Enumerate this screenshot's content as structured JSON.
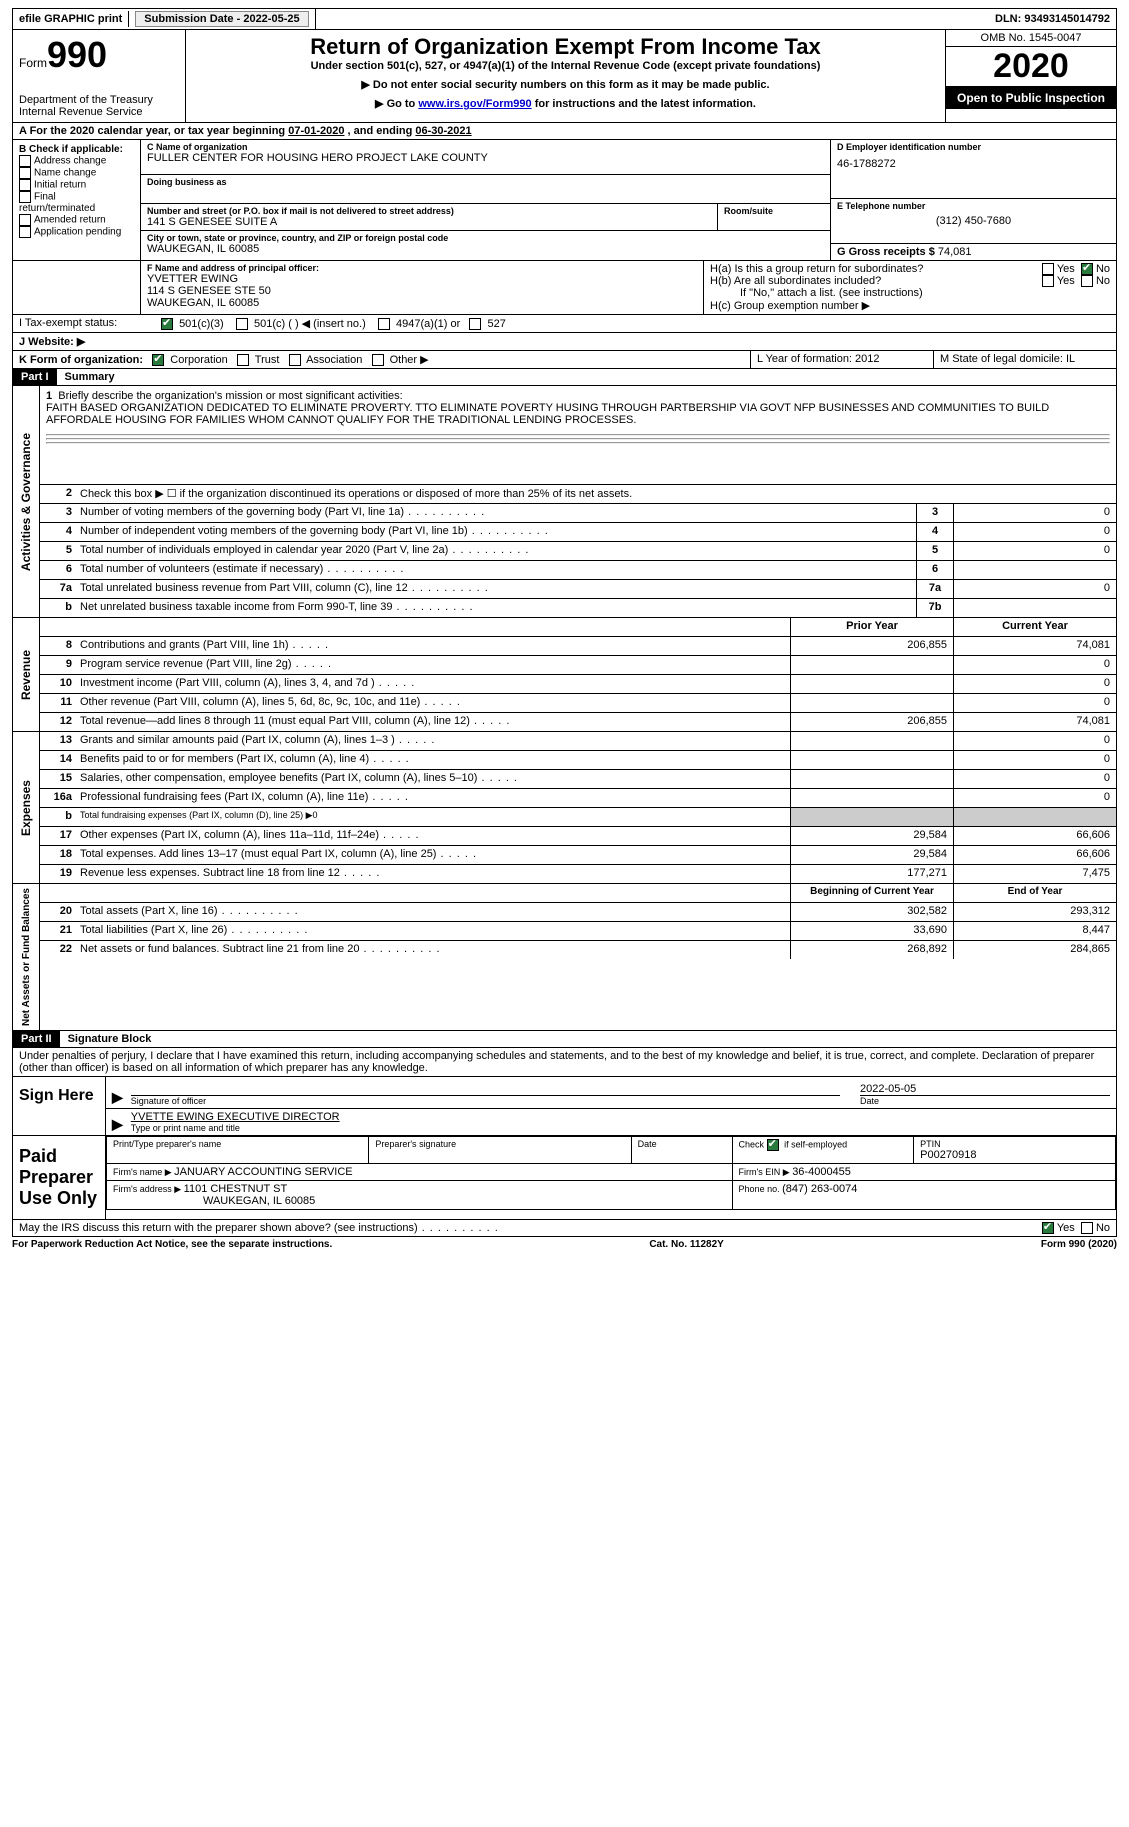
{
  "topbar": {
    "efile": "efile GRAPHIC print",
    "submission_label": "Submission Date - ",
    "submission_date": "2022-05-25",
    "dln_label": "DLN: ",
    "dln": "93493145014792"
  },
  "header": {
    "form_word": "Form",
    "form_no": "990",
    "dept1": "Department of the Treasury",
    "dept2": "Internal Revenue Service",
    "title": "Return of Organization Exempt From Income Tax",
    "sub1": "Under section 501(c), 527, or 4947(a)(1) of the Internal Revenue Code (except private foundations)",
    "sub2": "▶ Do not enter social security numbers on this form as it may be made public.",
    "sub3_pre": "▶ Go to ",
    "sub3_link": "www.irs.gov/Form990",
    "sub3_post": " for instructions and the latest information.",
    "omb": "OMB No. 1545-0047",
    "year": "2020",
    "inspection": "Open to Public Inspection"
  },
  "rowA": {
    "text_pre": "A For the 2020 calendar year, or tax year beginning ",
    "begin": "07-01-2020",
    "mid": "  , and ending ",
    "end": "06-30-2021"
  },
  "colB": {
    "header": "B Check if applicable:",
    "items": [
      "Address change",
      "Name change",
      "Initial return",
      "Final return/terminated",
      "Amended return",
      "Application pending"
    ]
  },
  "colC": {
    "name_label": "C Name of organization",
    "name": "FULLER CENTER FOR HOUSING HERO PROJECT LAKE COUNTY",
    "dba_label": "Doing business as",
    "addr_label": "Number and street (or P.O. box if mail is not delivered to street address)",
    "room_label": "Room/suite",
    "addr": "141 S GENESEE SUITE A",
    "city_label": "City or town, state or province, country, and ZIP or foreign postal code",
    "city": "WAUKEGAN, IL  60085"
  },
  "colD": {
    "ein_label": "D Employer identification number",
    "ein": "46-1788272",
    "phone_label": "E Telephone number",
    "phone": "(312) 450-7680",
    "gross_label": "G Gross receipts $ ",
    "gross": "74,081"
  },
  "rowF": {
    "label": "F  Name and address of principal officer:",
    "name": "YVETTER EWING",
    "addr1": "114 S GENESEE STE 50",
    "addr2": "WAUKEGAN, IL  60085"
  },
  "rowH": {
    "ha": "H(a)  Is this a group return for subordinates?",
    "hb": "H(b)  Are all subordinates included?",
    "hb_note": "If \"No,\" attach a list. (see instructions)",
    "hc": "H(c)  Group exemption number ▶",
    "yes": "Yes",
    "no": "No"
  },
  "rowI": {
    "label": "I   Tax-exempt status:",
    "opts": [
      "501(c)(3)",
      "501(c) (  ) ◀ (insert no.)",
      "4947(a)(1) or",
      "527"
    ]
  },
  "rowJ": {
    "label": "J   Website: ▶"
  },
  "rowK": {
    "label": "K Form of organization:",
    "opts": [
      "Corporation",
      "Trust",
      "Association",
      "Other ▶"
    ]
  },
  "rowLM": {
    "l": "L Year of formation: 2012",
    "m": "M State of legal domicile: IL"
  },
  "part1": {
    "tag": "Part I",
    "title": "Summary"
  },
  "gov": {
    "label": "Activities & Governance",
    "l1_label": "Briefly describe the organization's mission or most significant activities:",
    "l1_text": "FAITH BASED ORGANIZATION DEDICATED TO ELIMINATE PROVERTY. TTO ELIMINATE POVERTY HUSING THROUGH PARTBERSHIP VIA GOVT NFP BUSINESSES AND COMMUNITIES TO BUILD AFFORDALE HOUSING FOR FAMILIES WHOM CANNOT QUALIFY FOR THE TRADITIONAL LENDING PROCESSES.",
    "l2": "Check this box ▶ ☐  if the organization discontinued its operations or disposed of more than 25% of its net assets.",
    "lines": [
      {
        "n": "3",
        "d": "Number of voting members of the governing body (Part VI, line 1a)",
        "b": "3",
        "v": "0"
      },
      {
        "n": "4",
        "d": "Number of independent voting members of the governing body (Part VI, line 1b)",
        "b": "4",
        "v": "0"
      },
      {
        "n": "5",
        "d": "Total number of individuals employed in calendar year 2020 (Part V, line 2a)",
        "b": "5",
        "v": "0"
      },
      {
        "n": "6",
        "d": "Total number of volunteers (estimate if necessary)",
        "b": "6",
        "v": ""
      },
      {
        "n": "7a",
        "d": "Total unrelated business revenue from Part VIII, column (C), line 12",
        "b": "7a",
        "v": "0"
      },
      {
        "n": "b",
        "d": "Net unrelated business taxable income from Form 990-T, line 39",
        "b": "7b",
        "v": ""
      }
    ]
  },
  "rev": {
    "label": "Revenue",
    "h_prior": "Prior Year",
    "h_curr": "Current Year",
    "lines": [
      {
        "n": "8",
        "d": "Contributions and grants (Part VIII, line 1h)",
        "p": "206,855",
        "c": "74,081"
      },
      {
        "n": "9",
        "d": "Program service revenue (Part VIII, line 2g)",
        "p": "",
        "c": "0"
      },
      {
        "n": "10",
        "d": "Investment income (Part VIII, column (A), lines 3, 4, and 7d )",
        "p": "",
        "c": "0"
      },
      {
        "n": "11",
        "d": "Other revenue (Part VIII, column (A), lines 5, 6d, 8c, 9c, 10c, and 11e)",
        "p": "",
        "c": "0"
      },
      {
        "n": "12",
        "d": "Total revenue—add lines 8 through 11 (must equal Part VIII, column (A), line 12)",
        "p": "206,855",
        "c": "74,081"
      }
    ]
  },
  "exp": {
    "label": "Expenses",
    "lines": [
      {
        "n": "13",
        "d": "Grants and similar amounts paid (Part IX, column (A), lines 1–3 )",
        "p": "",
        "c": "0"
      },
      {
        "n": "14",
        "d": "Benefits paid to or for members (Part IX, column (A), line 4)",
        "p": "",
        "c": "0"
      },
      {
        "n": "15",
        "d": "Salaries, other compensation, employee benefits (Part IX, column (A), lines 5–10)",
        "p": "",
        "c": "0"
      },
      {
        "n": "16a",
        "d": "Professional fundraising fees (Part IX, column (A), line 11e)",
        "p": "",
        "c": "0"
      },
      {
        "n": "b",
        "d": "Total fundraising expenses (Part IX, column (D), line 25) ▶0",
        "grey": true
      },
      {
        "n": "17",
        "d": "Other expenses (Part IX, column (A), lines 11a–11d, 11f–24e)",
        "p": "29,584",
        "c": "66,606"
      },
      {
        "n": "18",
        "d": "Total expenses. Add lines 13–17 (must equal Part IX, column (A), line 25)",
        "p": "29,584",
        "c": "66,606"
      },
      {
        "n": "19",
        "d": "Revenue less expenses. Subtract line 18 from line 12",
        "p": "177,271",
        "c": "7,475"
      }
    ]
  },
  "net": {
    "label": "Net Assets or Fund Balances",
    "h_prior": "Beginning of Current Year",
    "h_curr": "End of Year",
    "lines": [
      {
        "n": "20",
        "d": "Total assets (Part X, line 16)",
        "p": "302,582",
        "c": "293,312"
      },
      {
        "n": "21",
        "d": "Total liabilities (Part X, line 26)",
        "p": "33,690",
        "c": "8,447"
      },
      {
        "n": "22",
        "d": "Net assets or fund balances. Subtract line 21 from line 20",
        "p": "268,892",
        "c": "284,865"
      }
    ]
  },
  "part2": {
    "tag": "Part II",
    "title": "Signature Block",
    "perjury": "Under penalties of perjury, I declare that I have examined this return, including accompanying schedules and statements, and to the best of my knowledge and belief, it is true, correct, and complete. Declaration of preparer (other than officer) is based on all information of which preparer has any knowledge."
  },
  "sign": {
    "here": "Sign Here",
    "sig_officer": "Signature of officer",
    "date": "Date",
    "date_val": "2022-05-05",
    "name": "YVETTE EWING  EXECUTIVE DIRECTOR",
    "name_label": "Type or print name and title"
  },
  "paid": {
    "title": "Paid Preparer Use Only",
    "h1": "Print/Type preparer's name",
    "h2": "Preparer's signature",
    "h3": "Date",
    "h4_pre": "Check ",
    "h4_post": " if self-employed",
    "h5": "PTIN",
    "ptin": "P00270918",
    "firm_name_label": "Firm's name    ▶ ",
    "firm_name": "JANUARY ACCOUNTING SERVICE",
    "firm_ein_label": "Firm's EIN ▶ ",
    "firm_ein": "36-4000455",
    "firm_addr_label": "Firm's address ▶ ",
    "firm_addr": "1101 CHESTNUT ST",
    "firm_addr2": "WAUKEGAN, IL  60085",
    "phone_label": "Phone no. ",
    "phone": "(847) 263-0074"
  },
  "discuss": "May the IRS discuss this return with the preparer shown above? (see instructions)",
  "footer": {
    "left": "For Paperwork Reduction Act Notice, see the separate instructions.",
    "mid": "Cat. No. 11282Y",
    "right_pre": "Form ",
    "right_form": "990",
    "right_post": " (2020)"
  }
}
